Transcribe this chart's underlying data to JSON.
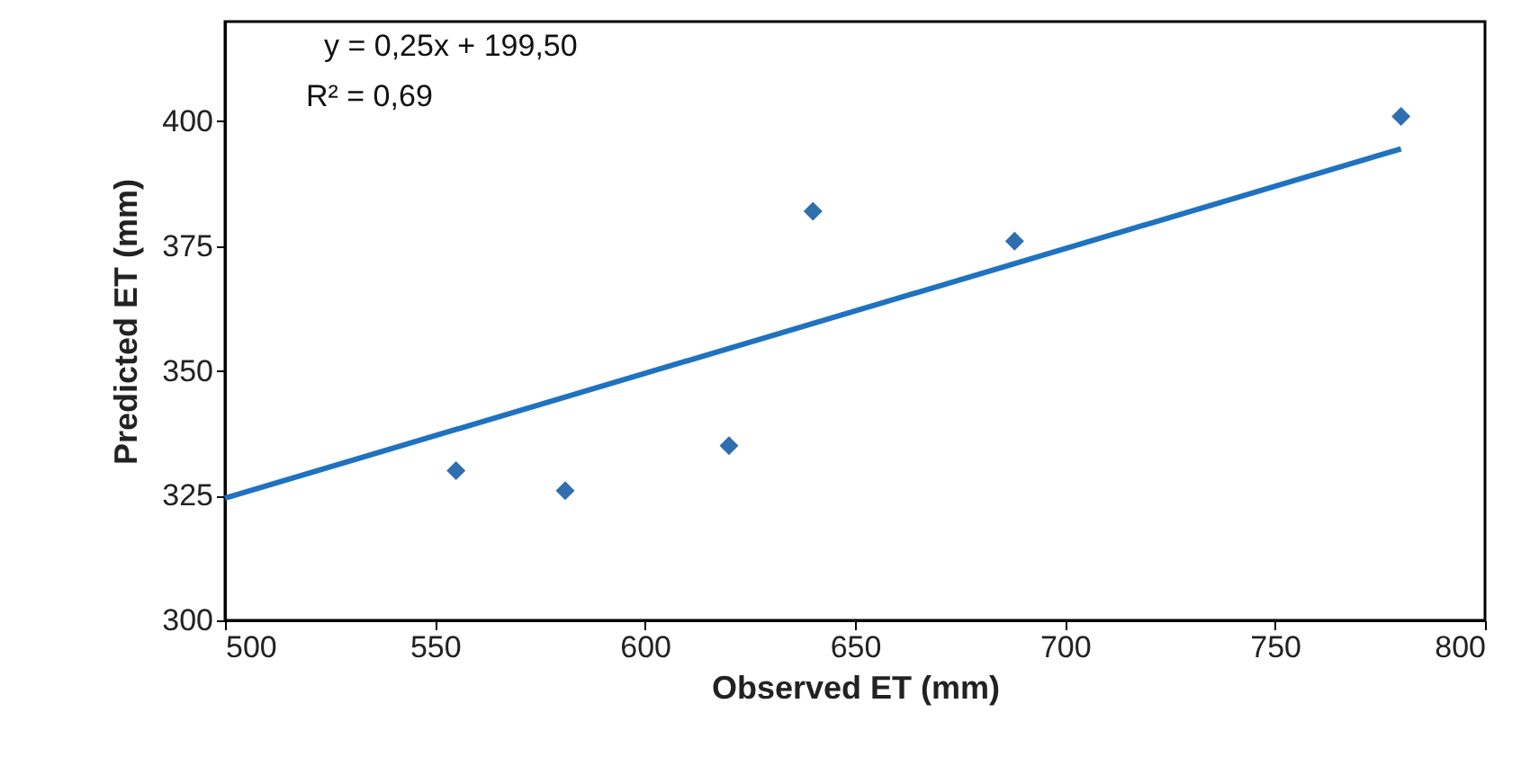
{
  "chart_data": {
    "type": "scatter",
    "xlabel": "Observed ET (mm)",
    "ylabel": "Predicted ET (mm)",
    "series": [
      {
        "color": "#2f6fb0",
        "x": [
          555,
          581,
          620,
          640,
          688,
          780
        ],
        "values": [
          330,
          326,
          335,
          382,
          376,
          401
        ],
        "marker": "diamond"
      },
      {
        "type": "line",
        "color": "#1f72c0",
        "x": [
          500,
          780
        ],
        "values": [
          324.5,
          394.5
        ],
        "line_style": "solid"
      }
    ],
    "annotations": [
      "y = 0,25x + 199,50",
      "R² = 0,69"
    ],
    "xlim": [
      500,
      800
    ],
    "xticks": [
      500,
      550,
      600,
      650,
      700,
      750,
      800
    ],
    "ylim": [
      300,
      420
    ],
    "yticks": [
      300,
      325,
      350,
      375,
      400
    ],
    "grid": false
  }
}
